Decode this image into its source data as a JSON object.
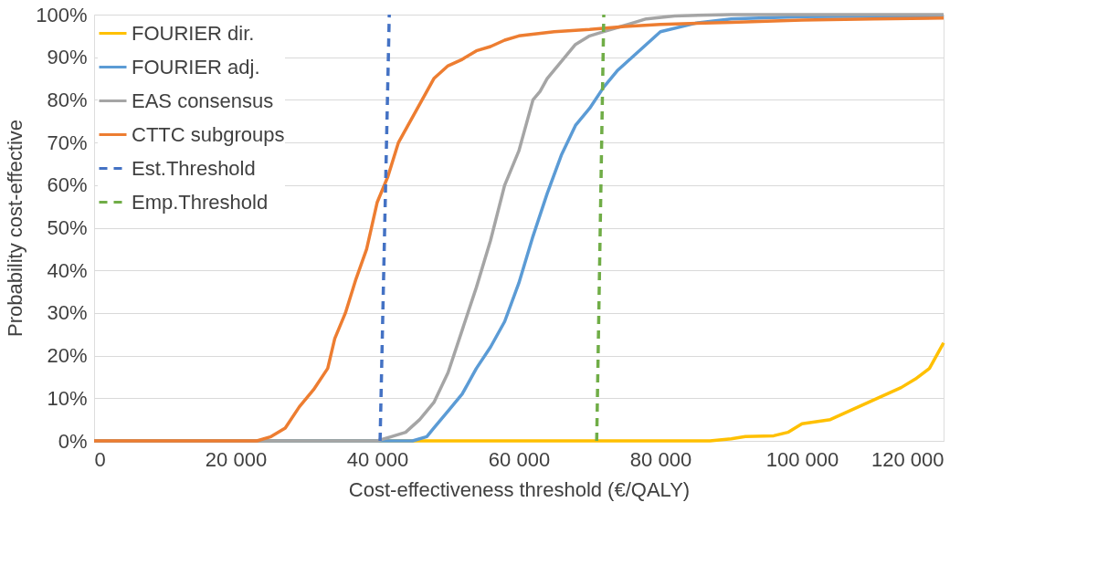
{
  "chart_data": {
    "type": "line",
    "xlabel": "Cost-effectiveness threshold (€/QALY)",
    "ylabel": "Probability cost-effective",
    "xlim": [
      0,
      120000
    ],
    "ylim": [
      0,
      100
    ],
    "xticks": [
      {
        "value": 0,
        "label": "0"
      },
      {
        "value": 20000,
        "label": "20 000"
      },
      {
        "value": 40000,
        "label": "40 000"
      },
      {
        "value": 60000,
        "label": "60 000"
      },
      {
        "value": 80000,
        "label": "80 000"
      },
      {
        "value": 100000,
        "label": "100 000"
      },
      {
        "value": 120000,
        "label": "120 000"
      }
    ],
    "yticks": [
      {
        "value": 0,
        "label": "0%"
      },
      {
        "value": 10,
        "label": "10%"
      },
      {
        "value": 20,
        "label": "20%"
      },
      {
        "value": 30,
        "label": "30%"
      },
      {
        "value": 40,
        "label": "40%"
      },
      {
        "value": 50,
        "label": "50%"
      },
      {
        "value": 60,
        "label": "60%"
      },
      {
        "value": 70,
        "label": "70%"
      },
      {
        "value": 80,
        "label": "80%"
      },
      {
        "value": 90,
        "label": "90%"
      },
      {
        "value": 100,
        "label": "100%"
      }
    ],
    "grid": "y",
    "legend": "top left",
    "marker": "none",
    "series": [
      {
        "name": "FOURIER dir.",
        "color": "#ffc000",
        "line_style": "solid",
        "x": [
          0,
          40000,
          87000,
          90000,
          92000,
          96000,
          98000,
          100000,
          104000,
          106000,
          108000,
          110000,
          112000,
          114000,
          116000,
          118000,
          119000,
          120000
        ],
        "values": [
          0,
          0,
          0,
          0.5,
          1,
          1.2,
          2,
          4,
          5,
          6.5,
          8,
          9.5,
          11,
          12.5,
          14.5,
          17,
          20,
          23
        ]
      },
      {
        "name": "FOURIER adj.",
        "color": "#5b9bd5",
        "line_style": "solid",
        "x": [
          0,
          45000,
          47000,
          48000,
          50000,
          52000,
          54000,
          56000,
          58000,
          60000,
          62000,
          64000,
          66000,
          68000,
          70000,
          72000,
          74000,
          76000,
          78000,
          80000,
          85000,
          90000,
          100000,
          120000
        ],
        "values": [
          0,
          0,
          1,
          3,
          7,
          11,
          17,
          22,
          28,
          37,
          48,
          58,
          67,
          74,
          78,
          83,
          87,
          90,
          93,
          96,
          98,
          99,
          99.5,
          99.7
        ]
      },
      {
        "name": "EAS consensus",
        "color": "#a5a5a5",
        "line_style": "solid",
        "x": [
          0,
          40000,
          42000,
          44000,
          46000,
          48000,
          50000,
          52000,
          54000,
          56000,
          58000,
          60000,
          62000,
          63000,
          64000,
          66000,
          68000,
          70000,
          72000,
          74000,
          76000,
          78000,
          82000,
          90000,
          120000
        ],
        "values": [
          0,
          0,
          1,
          2,
          5,
          9,
          16,
          26,
          36,
          47,
          60,
          68,
          80,
          82,
          85,
          89,
          93,
          95,
          96,
          97,
          98,
          99,
          99.7,
          100,
          100
        ]
      },
      {
        "name": "CTTC subgroups",
        "color": "#ed7d31",
        "line_style": "solid",
        "x": [
          0,
          23000,
          25000,
          27000,
          29000,
          31000,
          33000,
          34000,
          35500,
          37000,
          38500,
          40000,
          41500,
          43000,
          45000,
          47000,
          48000,
          50000,
          52000,
          54000,
          56000,
          58000,
          60000,
          65000,
          70000,
          75000,
          80000,
          90000,
          100000,
          110000,
          120000
        ],
        "values": [
          0,
          0,
          1,
          3,
          8,
          12,
          17,
          24,
          30,
          38,
          45,
          56,
          62,
          70,
          76,
          82,
          85,
          88,
          89.5,
          91.5,
          92.5,
          94,
          95,
          96,
          96.5,
          97.2,
          97.7,
          98.2,
          98.7,
          99,
          99.2
        ]
      },
      {
        "name": "Est.Threshold",
        "color": "#4472c4",
        "line_style": "dashed",
        "x": [
          40400,
          41700
        ],
        "values": [
          0,
          100
        ]
      },
      {
        "name": "Emp.Threshold",
        "color": "#70ad47",
        "line_style": "dashed",
        "x": [
          71000,
          72000
        ],
        "values": [
          0,
          100
        ]
      }
    ]
  }
}
